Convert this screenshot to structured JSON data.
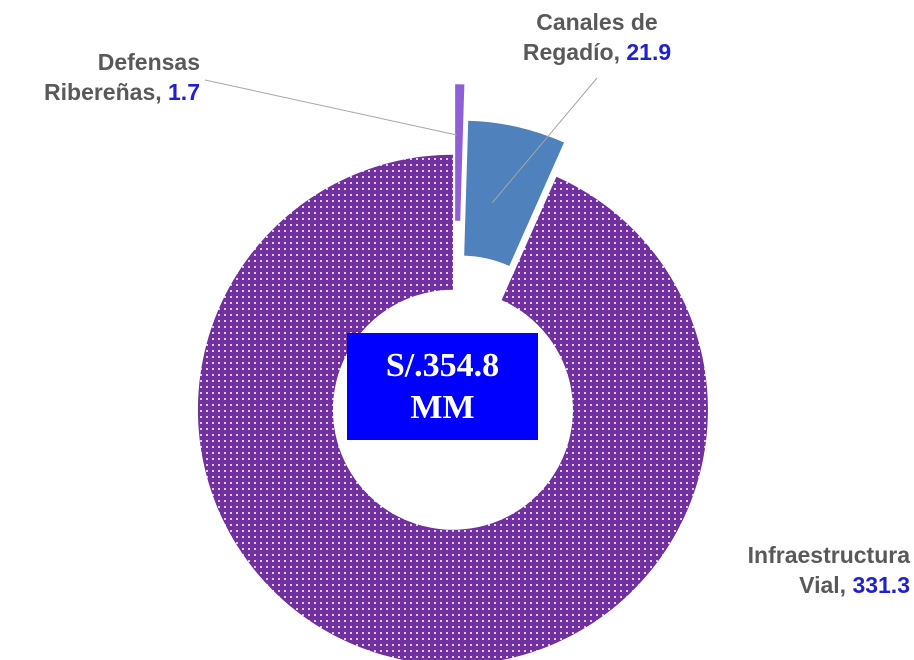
{
  "chart_data": {
    "type": "donut",
    "categories": [
      "Defensas Ribereñas",
      "Canales de Regadío",
      "Infraestructura Vial"
    ],
    "values": [
      1.7,
      21.9,
      331.3
    ],
    "colors": [
      "#8f5fd9",
      "#4f81bd",
      "#7030a0"
    ],
    "label_separator": ", ",
    "center_label": "S/.354.8 MM"
  }
}
